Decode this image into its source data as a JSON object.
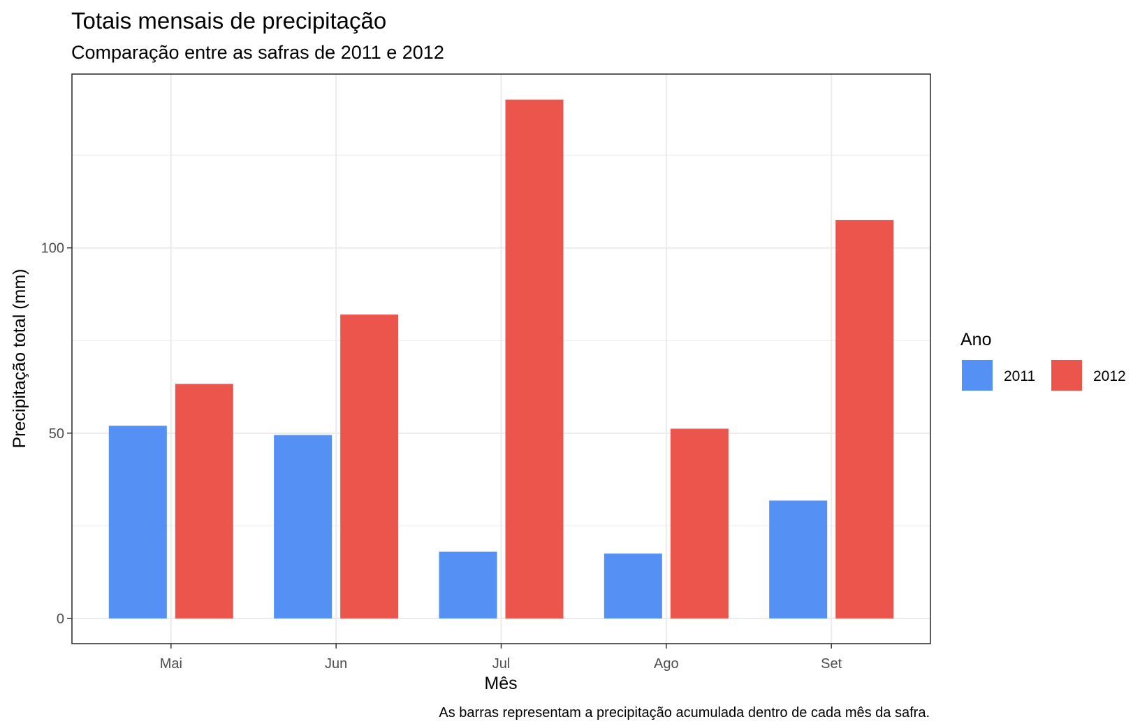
{
  "chart_data": {
    "type": "bar",
    "title": "Totais mensais de precipitação",
    "subtitle": "Comparação entre as safras de 2011 e 2012",
    "xlabel": "Mês",
    "ylabel": "Precipitação total (mm)",
    "caption": "As barras representam a precipitação acumulada dentro de cada mês da safra.",
    "categories": [
      "Mai",
      "Jun",
      "Jul",
      "Ago",
      "Set"
    ],
    "series": [
      {
        "name": "2011",
        "color": "#5591f4",
        "values": [
          52,
          49.5,
          18,
          17.5,
          31.8
        ]
      },
      {
        "name": "2012",
        "color": "#ec554b",
        "values": [
          63.3,
          82,
          140,
          51.2,
          107.5
        ]
      }
    ],
    "ylim": [
      -6.8,
      146.9
    ],
    "yticks": [
      0,
      50,
      100
    ],
    "grid": true,
    "legend": {
      "title": "Ano",
      "position": "right"
    }
  }
}
